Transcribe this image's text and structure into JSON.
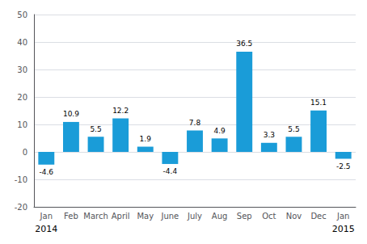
{
  "chart_data": {
    "type": "bar",
    "categories": [
      "Jan",
      "Feb",
      "March",
      "April",
      "May",
      "June",
      "July",
      "Aug",
      "Sep",
      "Oct",
      "Nov",
      "Dec",
      "Jan"
    ],
    "values": [
      -4.6,
      10.9,
      5.5,
      12.2,
      1.9,
      -4.4,
      7.8,
      4.9,
      36.5,
      3.3,
      5.5,
      15.1,
      -2.5
    ],
    "color": "#1a9cd8",
    "ylim": [
      -20,
      50
    ],
    "yticks": [
      -20,
      -10,
      0,
      10,
      20,
      30,
      40,
      50
    ],
    "grid": true,
    "data_labels": true,
    "annotations": [
      {
        "text": "2014",
        "x": 0
      },
      {
        "text": "2015",
        "x": 12
      }
    ]
  }
}
